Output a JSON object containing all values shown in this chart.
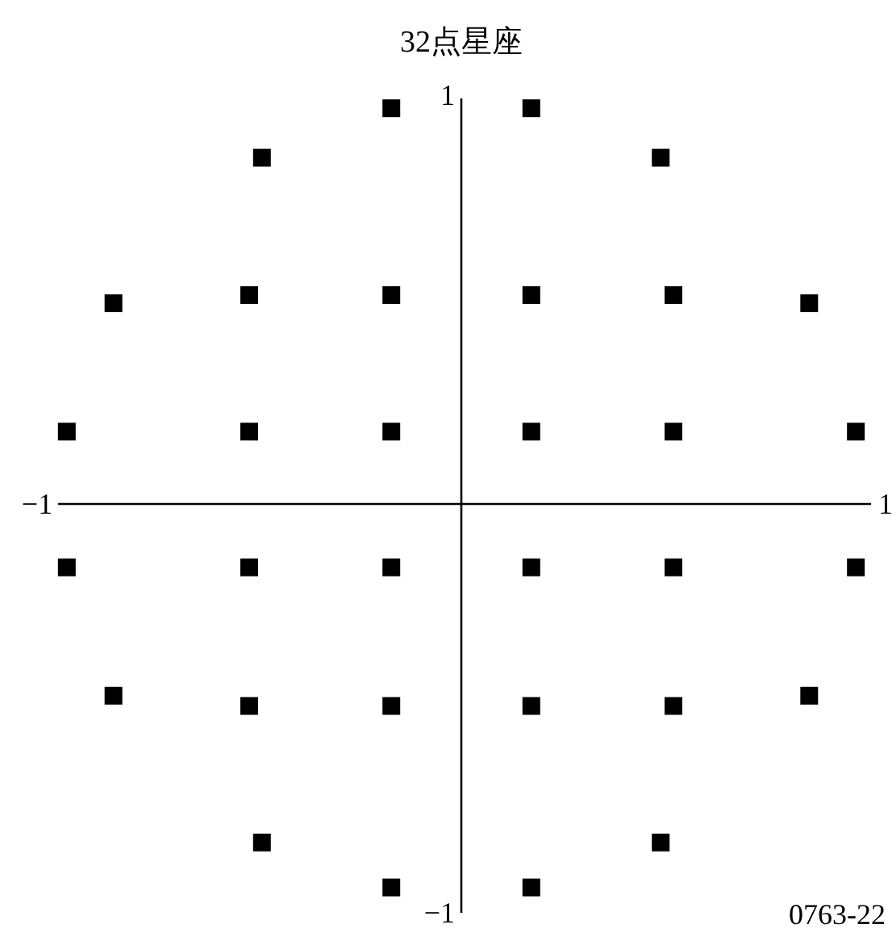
{
  "chart_data": {
    "type": "scatter",
    "title": "32点星座",
    "x": [
      -0.165,
      0.165,
      -0.47,
      0.47,
      -0.82,
      0.82,
      -0.5,
      -0.165,
      0.165,
      0.5,
      -0.93,
      -0.5,
      -0.165,
      0.165,
      0.5,
      0.93,
      -0.93,
      -0.5,
      -0.165,
      0.165,
      0.5,
      0.93,
      -0.82,
      0.82,
      -0.5,
      -0.165,
      0.165,
      0.5,
      -0.47,
      0.47,
      -0.165,
      0.165
    ],
    "values": [
      0.968,
      0.968,
      0.847,
      0.847,
      0.491,
      0.491,
      0.511,
      0.511,
      0.511,
      0.511,
      0.177,
      0.177,
      0.177,
      0.177,
      0.177,
      0.177,
      -0.155,
      -0.155,
      -0.155,
      -0.155,
      -0.155,
      -0.155,
      -0.469,
      -0.469,
      -0.494,
      -0.494,
      -0.494,
      -0.494,
      -0.828,
      -0.828,
      -0.938,
      -0.938
    ],
    "color": "#000000",
    "marker": "square",
    "xlim": [
      -1,
      1
    ],
    "ylim": [
      -1,
      1
    ],
    "xticks": [
      -1,
      1
    ],
    "yticks": [
      -1,
      1
    ],
    "annotations": [
      "0763-22"
    ]
  }
}
